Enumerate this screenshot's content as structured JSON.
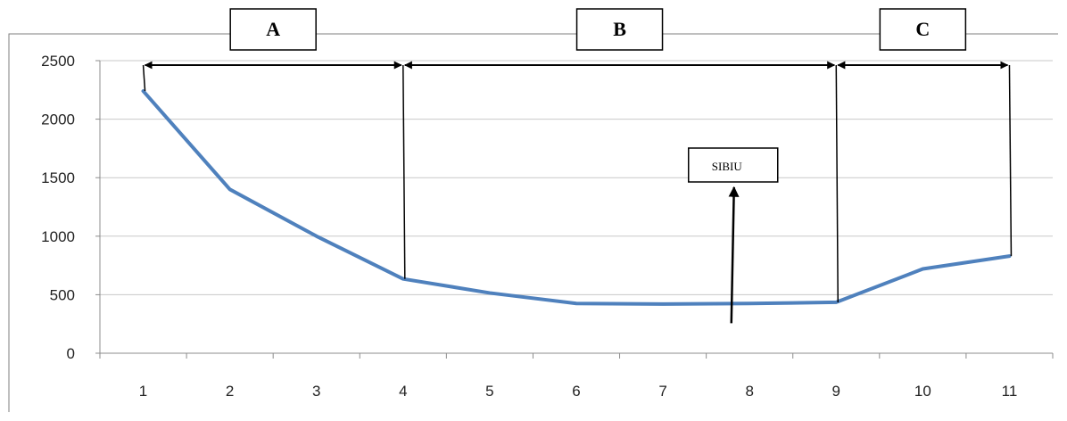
{
  "chart_data": {
    "type": "line",
    "x": [
      1,
      2,
      3,
      4,
      5,
      6,
      7,
      8,
      9,
      10,
      11
    ],
    "series": [
      {
        "values": [
          2240,
          1400,
          1000,
          635,
          515,
          425,
          420,
          425,
          435,
          720,
          830
        ],
        "color": "#4f81bd"
      }
    ],
    "ylim": [
      0,
      2500
    ],
    "yticks": [
      0,
      500,
      1000,
      1500,
      2000,
      2500
    ],
    "ytick_labels": [
      "0",
      "500",
      "1000",
      "1500",
      "2000",
      "2500"
    ],
    "xtick_labels": [
      "1",
      "2",
      "3",
      "4",
      "5",
      "6",
      "7",
      "8",
      "9",
      "10",
      "11"
    ],
    "grid": "horizontal",
    "segments": [
      {
        "label": "A",
        "from_x": 1,
        "to_x": 4
      },
      {
        "label": "B",
        "from_x": 4,
        "to_x": 9
      },
      {
        "label": "C",
        "from_x": 9,
        "to_x": 11
      }
    ],
    "annotations": [
      {
        "label": "SIBIU",
        "x": 7.8
      }
    ]
  }
}
